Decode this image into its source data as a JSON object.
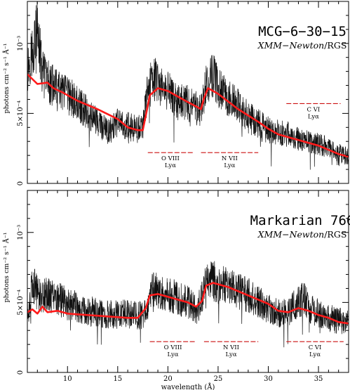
{
  "chart_data": [
    {
      "type": "line",
      "title": "MCG−6−30−15",
      "subtitle_italic": "XMM−Newton",
      "subtitle_rest": "/RGS",
      "xlabel": "",
      "ylabel": "photons cm⁻² s⁻¹ Å⁻¹",
      "xlim": [
        6,
        38
      ],
      "ylim": [
        0,
        0.0013
      ],
      "x_ticks_labeled": [],
      "y_ticks": [
        {
          "value": 0,
          "label": "0"
        },
        {
          "value": 0.0005,
          "label": "5×10⁻⁴"
        },
        {
          "value": 0.001,
          "label": "10⁻³"
        }
      ],
      "series": [
        {
          "name": "",
          "style": "model",
          "color": "#ff1a1a",
          "x": [
            6.0,
            7.0,
            8.0,
            8.6,
            9.5,
            11.0,
            13.0,
            15.0,
            16.0,
            17.0,
            17.5,
            17.9,
            18.2,
            19.0,
            20.0,
            21.0,
            22.0,
            22.8,
            23.3,
            23.6,
            24.0,
            25.0,
            27.0,
            29.0,
            30.0,
            31.0,
            32.0,
            33.0,
            34.0,
            35.0,
            36.0,
            37.0,
            38.0
          ],
          "y": [
            0.00078,
            0.00071,
            0.00072,
            0.00068,
            0.00065,
            0.00059,
            0.00053,
            0.00046,
            0.0004,
            0.00038,
            0.00038,
            0.00052,
            0.00063,
            0.00068,
            0.00066,
            0.00062,
            0.00058,
            0.00055,
            0.00053,
            0.00061,
            0.00068,
            0.00064,
            0.00053,
            0.00044,
            0.00039,
            0.00035,
            0.00033,
            0.00031,
            0.00029,
            0.00027,
            0.00024,
            0.00021,
            0.00019
          ]
        },
        {
          "name": "",
          "style": "data",
          "color": "#111111",
          "x": [
            6.0,
            6.5,
            7.0,
            7.5,
            8.0,
            9.0,
            10.0,
            11.0,
            12.0,
            13.0,
            14.0,
            15.0,
            16.0,
            17.0,
            17.5,
            18.0,
            18.5,
            19.0,
            20.0,
            21.0,
            22.0,
            22.8,
            23.3,
            23.8,
            24.5,
            25.0,
            26.0,
            27.0,
            28.0,
            29.0,
            30.0,
            31.0,
            32.0,
            33.0,
            34.0,
            35.0,
            36.0,
            37.0,
            38.0
          ],
          "y": [
            0.00082,
            0.00095,
            0.0011,
            0.00078,
            0.00074,
            0.00066,
            0.00063,
            0.00057,
            0.00051,
            0.00044,
            0.00036,
            0.00043,
            0.00041,
            0.00038,
            0.00043,
            0.00066,
            0.00078,
            0.0007,
            0.00066,
            0.00058,
            0.00057,
            0.00054,
            0.00053,
            0.0007,
            0.00078,
            0.00069,
            0.00061,
            0.00055,
            0.00047,
            0.00043,
            0.00038,
            0.00036,
            0.00035,
            0.00032,
            0.0003,
            0.00028,
            0.00026,
            0.00022,
            0.00019
          ]
        }
      ],
      "annotations": [
        {
          "label1": "O VIII",
          "label2": "Lyα",
          "x_from": 18.0,
          "x_to": 22.5,
          "y": 0.00022
        },
        {
          "label1": "N VII",
          "label2": "Lyα",
          "x_from": 23.3,
          "x_to": 29.0,
          "y": 0.00022
        },
        {
          "label1": "C VI",
          "label2": "Lyα",
          "x_from": 31.8,
          "x_to": 37.2,
          "y": 0.00057
        }
      ]
    },
    {
      "type": "line",
      "title": "Markarian 766",
      "subtitle_italic": "XMM−Newton",
      "subtitle_rest": "/RGS",
      "xlabel": "wavelength (Å)",
      "ylabel": "photons cm⁻² s⁻¹ Å⁻¹",
      "xlim": [
        6,
        38
      ],
      "ylim": [
        0,
        0.0013
      ],
      "x_ticks_labeled": [
        10,
        15,
        20,
        25,
        30,
        35
      ],
      "y_ticks": [
        {
          "value": 0,
          "label": "0"
        },
        {
          "value": 0.0005,
          "label": "5×10⁻⁴"
        },
        {
          "value": 0.001,
          "label": "10⁻³"
        }
      ],
      "series": [
        {
          "name": "",
          "style": "model",
          "color": "#ff1a1a",
          "x": [
            6.0,
            6.5,
            7.0,
            7.5,
            8.0,
            9.0,
            10.0,
            12.0,
            14.0,
            16.0,
            17.0,
            17.8,
            18.2,
            19.0,
            20.0,
            21.0,
            22.0,
            22.8,
            23.4,
            23.8,
            24.5,
            26.0,
            28.0,
            30.0,
            31.0,
            32.0,
            33.0,
            34.0,
            35.0,
            36.0,
            37.0,
            38.0
          ],
          "y": [
            0.00043,
            0.00045,
            0.00042,
            0.00047,
            0.00043,
            0.00044,
            0.00042,
            0.00041,
            0.0004,
            0.00039,
            0.00039,
            0.00046,
            0.00055,
            0.00056,
            0.00054,
            0.00052,
            0.0005,
            0.00047,
            0.00051,
            0.00062,
            0.00064,
            0.00061,
            0.00055,
            0.00049,
            0.00044,
            0.00043,
            0.00046,
            0.00044,
            0.00041,
            0.00039,
            0.00036,
            0.00035
          ]
        },
        {
          "name": "",
          "style": "data",
          "color": "#111111",
          "x": [
            6.0,
            6.5,
            7.0,
            7.5,
            8.0,
            9.0,
            10.0,
            11.0,
            12.0,
            13.0,
            14.0,
            15.0,
            16.0,
            17.0,
            17.8,
            18.3,
            19.0,
            20.0,
            21.0,
            22.0,
            23.0,
            23.6,
            24.2,
            25.0,
            26.0,
            27.0,
            28.0,
            29.0,
            30.0,
            31.0,
            32.0,
            33.0,
            33.5,
            34.0,
            35.0,
            36.0,
            37.0,
            38.0
          ],
          "y": [
            0.0004,
            0.00062,
            0.00058,
            0.00055,
            0.00056,
            0.00053,
            0.00049,
            0.00047,
            0.00044,
            0.00043,
            0.00042,
            0.00041,
            0.00042,
            0.0004,
            0.00043,
            0.0006,
            0.00058,
            0.00056,
            0.00053,
            0.0005,
            0.00045,
            0.0006,
            0.00066,
            0.00064,
            0.00062,
            0.00058,
            0.00055,
            0.0005,
            0.00046,
            0.00042,
            0.00044,
            0.0005,
            0.00054,
            0.00046,
            0.00042,
            0.00039,
            0.00037,
            0.00035
          ]
        }
      ],
      "annotations": [
        {
          "label1": "O VIII",
          "label2": "Lyα",
          "x_from": 18.2,
          "x_to": 22.8,
          "y": 0.00022
        },
        {
          "label1": "N VII",
          "label2": "Lyα",
          "x_from": 23.6,
          "x_to": 29.0,
          "y": 0.00022
        },
        {
          "label1": "C VI",
          "label2": "Lyα",
          "x_from": 31.8,
          "x_to": 37.5,
          "y": 0.00022
        }
      ]
    }
  ]
}
